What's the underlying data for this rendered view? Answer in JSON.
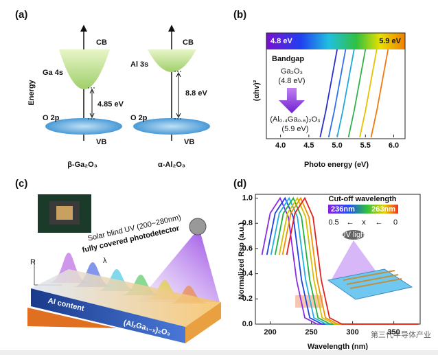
{
  "chart_data": [
    {
      "type": "line",
      "title": "(b)",
      "xlabel": "Photo energy (eV)",
      "ylabel": "(αhv)²",
      "xlim": [
        3.75,
        6.2
      ],
      "xticks": [
        {
          "value": 4,
          "label": "4.0"
        },
        4.5,
        {
          "value": 5,
          "label": "5.0"
        },
        5.5,
        {
          "value": 6,
          "label": "6.0"
        }
      ],
      "ylim": [
        0,
        1
      ],
      "colorbar_labels": [
        "4.8 eV",
        "5.9 eV"
      ],
      "annotations": [
        "Bandgap",
        "Ga₂O₃",
        "(4.8 eV)",
        "(Al₀.₄Ga₀.₆)₂O₃",
        "(5.9 eV)"
      ],
      "series": [
        {
          "color": "#2b2bd0",
          "x": [
            4.7,
            4.8,
            4.9,
            5.0
          ],
          "values": [
            0,
            0.3,
            0.65,
            1
          ]
        },
        {
          "color": "#2f6fe8",
          "x": [
            4.85,
            4.95,
            5.05,
            5.15
          ],
          "values": [
            0,
            0.3,
            0.65,
            1
          ]
        },
        {
          "color": "#1fa8e0",
          "x": [
            5.0,
            5.1,
            5.2,
            5.3
          ],
          "values": [
            0,
            0.3,
            0.65,
            1
          ]
        },
        {
          "color": "#33b24a",
          "x": [
            5.2,
            5.3,
            5.4,
            5.5
          ],
          "values": [
            0,
            0.3,
            0.65,
            1
          ]
        },
        {
          "color": "#e6c200",
          "x": [
            5.4,
            5.5,
            5.6,
            5.7
          ],
          "values": [
            0,
            0.3,
            0.65,
            1
          ]
        },
        {
          "color": "#f07a10",
          "x": [
            5.6,
            5.7,
            5.8,
            5.9
          ],
          "values": [
            0,
            0.3,
            0.65,
            1
          ]
        }
      ]
    },
    {
      "type": "line",
      "title": "(d)",
      "xlabel": "Wavelength (nm)",
      "ylabel": "Normalized Rsp (a.u.)",
      "xlim": [
        182,
        382
      ],
      "xticks": [
        200,
        250,
        300,
        350
      ],
      "ylim": [
        0,
        1.03
      ],
      "yticks": [
        {
          "value": 0,
          "label": "0.0"
        },
        0.2,
        0.4,
        0.6,
        0.8,
        {
          "value": 1,
          "label": "1.0"
        }
      ],
      "annotations": [
        "Cut-off wavelength",
        "236nm",
        "263nm",
        "0.5",
        "←",
        "x",
        "←",
        "0",
        "UV light",
        "第三代半导体产业"
      ],
      "series": [
        {
          "color": "#8a2be2",
          "x": [
            190,
            200,
            212,
            222,
            232,
            242,
            257,
            380
          ],
          "values": [
            0.55,
            0.88,
            1.0,
            0.85,
            0.35,
            0.05,
            0,
            0
          ]
        },
        {
          "color": "#2040e0",
          "x": [
            196,
            206,
            218,
            228,
            238,
            248,
            263,
            380
          ],
          "values": [
            0.55,
            0.88,
            1.0,
            0.85,
            0.35,
            0.05,
            0,
            0
          ]
        },
        {
          "color": "#20b0e0",
          "x": [
            201,
            211,
            223,
            233,
            243,
            253,
            268,
            380
          ],
          "values": [
            0.55,
            0.88,
            1.0,
            0.85,
            0.35,
            0.05,
            0,
            0
          ]
        },
        {
          "color": "#20b040",
          "x": [
            206,
            216,
            228,
            238,
            248,
            258,
            273,
            380
          ],
          "values": [
            0.55,
            0.88,
            1.0,
            0.85,
            0.35,
            0.05,
            0,
            0
          ]
        },
        {
          "color": "#d4c000",
          "x": [
            211,
            221,
            233,
            243,
            253,
            263,
            278,
            380
          ],
          "values": [
            0.55,
            0.88,
            1.0,
            0.85,
            0.35,
            0.05,
            0,
            0
          ]
        },
        {
          "color": "#f09000",
          "x": [
            215,
            225,
            237,
            247,
            257,
            267,
            282,
            380
          ],
          "values": [
            0.55,
            0.88,
            1.0,
            0.85,
            0.35,
            0.05,
            0,
            0
          ]
        },
        {
          "color": "#e02020",
          "x": [
            220,
            230,
            242,
            252,
            262,
            272,
            287,
            380
          ],
          "values": [
            0.55,
            0.88,
            1.0,
            0.85,
            0.35,
            0.05,
            0,
            0
          ]
        }
      ]
    }
  ],
  "panels": {
    "a": {
      "label": "(a)",
      "ylabel": "Energy",
      "texts": [
        "CB",
        "Ga 4s",
        "4.85 eV",
        "O 2p",
        "VB",
        "β-Ga₂O₃",
        "CB",
        "Al 3s",
        "8.8 eV",
        "O 2p",
        "VB",
        "α-Al₂O₃"
      ]
    },
    "c": {
      "label": "(c)",
      "texts": [
        "Solar blind UV (200~280nm)",
        "fully covered photodetector",
        "R",
        "λ",
        "Al content",
        "(AlₓGa₁₋ₓ)₂O₃"
      ]
    }
  }
}
